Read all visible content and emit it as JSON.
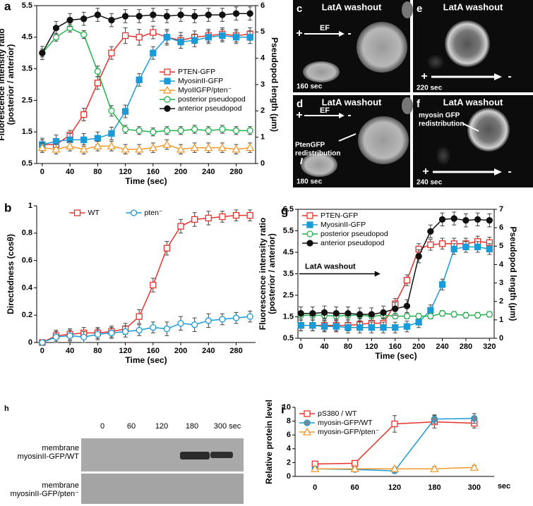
{
  "chart_data": [
    {
      "type": "line",
      "panel_label": "a",
      "xlabel": "Time (sec)",
      "ylabel": [
        "Fluorescence intensity ratio",
        "(posterior / anterior)"
      ],
      "y2label": "Pseudopod length (μm)",
      "x": [
        0,
        20,
        40,
        60,
        80,
        100,
        120,
        140,
        160,
        180,
        200,
        220,
        240,
        260,
        280,
        300
      ],
      "xlim": [
        -8,
        308
      ],
      "xticks": [
        0,
        40,
        80,
        120,
        160,
        200,
        240,
        280
      ],
      "ylim": [
        0.5,
        5.5
      ],
      "yticks": [
        0.5,
        1.5,
        2.5,
        3.5,
        4.5,
        5.5
      ],
      "y2lim": [
        0,
        6
      ],
      "y2ticks": [
        0,
        1,
        2,
        3,
        4,
        5,
        6
      ],
      "legend": "center right",
      "series": [
        {
          "name": "PTEN-GFP",
          "color": "#e8322b",
          "marker": "square",
          "filled": false,
          "values": [
            1.1,
            1.1,
            1.4,
            2.05,
            3.05,
            4.0,
            4.55,
            4.5,
            4.65,
            4.5,
            4.4,
            4.5,
            4.55,
            4.6,
            4.55,
            4.6
          ],
          "errors": [
            0.15,
            0.15,
            0.15,
            0.2,
            0.2,
            0.2,
            0.25,
            0.25,
            0.2,
            0.25,
            0.25,
            0.2,
            0.2,
            0.2,
            0.2,
            0.2
          ]
        },
        {
          "name": "MyosinII-GFP",
          "color": "#1a9ad6",
          "marker": "square",
          "filled": true,
          "values": [
            1.1,
            1.2,
            1.25,
            1.25,
            1.3,
            1.45,
            2.15,
            3.15,
            4.0,
            4.5,
            4.35,
            4.4,
            4.5,
            4.55,
            4.5,
            4.5
          ],
          "errors": [
            0.2,
            0.2,
            0.2,
            0.2,
            0.2,
            0.2,
            0.2,
            0.2,
            0.2,
            0.2,
            0.2,
            0.2,
            0.2,
            0.2,
            0.2,
            0.2
          ]
        },
        {
          "name": "MyoIIGFP/pten⁻",
          "color": "#f39a2b",
          "marker": "triangle",
          "filled": false,
          "values": [
            1.0,
            0.95,
            1.05,
            0.95,
            1.05,
            1.05,
            0.95,
            0.95,
            1.0,
            1.1,
            0.95,
            1.0,
            1.0,
            1.0,
            0.95,
            1.0
          ],
          "errors": [
            0.15,
            0.15,
            0.15,
            0.15,
            0.15,
            0.15,
            0.15,
            0.15,
            0.15,
            0.15,
            0.15,
            0.15,
            0.15,
            0.15,
            0.15,
            0.15
          ]
        },
        {
          "name": "posterior pseudopod",
          "color": "#22b24c",
          "marker": "circle",
          "filled": false,
          "axis": "y2",
          "values": [
            4.2,
            4.8,
            5.15,
            4.9,
            3.5,
            2.0,
            1.3,
            1.25,
            1.2,
            1.25,
            1.25,
            1.3,
            1.25,
            1.3,
            1.25,
            1.25
          ],
          "errors": [
            0.15,
            0.15,
            0.15,
            0.15,
            0.2,
            0.2,
            0.15,
            0.15,
            0.15,
            0.15,
            0.15,
            0.15,
            0.15,
            0.15,
            0.15,
            0.15
          ]
        },
        {
          "name": "anterior pseudopod",
          "color": "#111111",
          "marker": "circle",
          "filled": true,
          "axis": "y2",
          "values": [
            4.2,
            5.15,
            5.45,
            5.5,
            5.65,
            5.45,
            5.6,
            5.6,
            5.65,
            5.6,
            5.65,
            5.6,
            5.65,
            5.65,
            5.7,
            5.7
          ],
          "errors": [
            0.25,
            0.25,
            0.25,
            0.25,
            0.25,
            0.25,
            0.25,
            0.25,
            0.25,
            0.25,
            0.25,
            0.25,
            0.25,
            0.25,
            0.25,
            0.25
          ]
        }
      ]
    },
    {
      "type": "line",
      "panel_label": "b",
      "xlabel": "Time (sec)",
      "ylabel": [
        "Directedness (cosθ)"
      ],
      "x": [
        0,
        20,
        40,
        60,
        80,
        100,
        120,
        140,
        160,
        180,
        200,
        220,
        240,
        260,
        280,
        300
      ],
      "xlim": [
        -8,
        308
      ],
      "xticks": [
        0,
        40,
        80,
        120,
        160,
        200,
        240,
        280
      ],
      "ylim": [
        0,
        1
      ],
      "yticks": [
        0,
        0.2,
        0.4,
        0.6,
        0.8,
        1
      ],
      "legend": "upper center",
      "series": [
        {
          "name": "WT",
          "color": "#e8322b",
          "marker": "square",
          "filled": false,
          "values": [
            0,
            0.05,
            0.06,
            0.07,
            0.07,
            0.08,
            0.1,
            0.19,
            0.42,
            0.69,
            0.85,
            0.9,
            0.91,
            0.92,
            0.93,
            0.93
          ],
          "errors": [
            0.01,
            0.04,
            0.04,
            0.04,
            0.04,
            0.04,
            0.04,
            0.05,
            0.05,
            0.05,
            0.05,
            0.05,
            0.05,
            0.04,
            0.04,
            0.04
          ]
        },
        {
          "name": "pten⁻",
          "color": "#1a9ad6",
          "marker": "circle",
          "filled": false,
          "values": [
            0,
            0.04,
            0.05,
            0.04,
            0.06,
            0.07,
            0.08,
            0.09,
            0.11,
            0.1,
            0.14,
            0.13,
            0.16,
            0.17,
            0.18,
            0.19
          ],
          "errors": [
            0.01,
            0.04,
            0.04,
            0.04,
            0.04,
            0.04,
            0.04,
            0.04,
            0.04,
            0.05,
            0.05,
            0.05,
            0.05,
            0.04,
            0.04,
            0.04
          ]
        }
      ]
    },
    {
      "type": "line",
      "panel_label": "g",
      "xlabel": "Time (sec)",
      "ylabel": [
        "Fluorescence intensity ratio",
        "(posterior / anterior)"
      ],
      "y2label": "Pseudopod length (μm)",
      "x": [
        0,
        20,
        40,
        60,
        80,
        100,
        120,
        140,
        160,
        180,
        200,
        220,
        240,
        260,
        280,
        300,
        320
      ],
      "xlim": [
        -5,
        328
      ],
      "xticks": [
        0,
        40,
        80,
        120,
        160,
        200,
        240,
        280,
        320
      ],
      "ylim": [
        0.5,
        6.5
      ],
      "yticks": [
        0.5,
        1.5,
        2.5,
        3.5,
        4.5,
        5.5,
        6.5
      ],
      "y2lim": [
        0,
        7
      ],
      "y2ticks": [
        0,
        1,
        2,
        3,
        4,
        5,
        6,
        7
      ],
      "legend": "upper left",
      "annotation": "LatA washout",
      "series": [
        {
          "name": "PTEN-GFP",
          "color": "#e8322b",
          "marker": "square",
          "filled": false,
          "values": [
            1.1,
            1.1,
            1.1,
            1.1,
            1.1,
            1.15,
            1.2,
            1.2,
            2.1,
            3.2,
            4.65,
            4.85,
            4.9,
            4.9,
            4.9,
            5.0,
            4.95
          ],
          "errors": [
            0.25,
            0.25,
            0.25,
            0.25,
            0.25,
            0.25,
            0.25,
            0.25,
            0.25,
            0.25,
            0.25,
            0.25,
            0.25,
            0.25,
            0.25,
            0.25,
            0.25
          ]
        },
        {
          "name": "MyosinII-GFP",
          "color": "#1a9ad6",
          "marker": "square",
          "filled": true,
          "values": [
            1.1,
            1.1,
            1.05,
            1.05,
            1.0,
            1.0,
            1.0,
            1.0,
            1.0,
            1.05,
            1.25,
            1.8,
            3.0,
            4.65,
            4.75,
            4.75,
            4.65
          ],
          "errors": [
            0.25,
            0.25,
            0.25,
            0.25,
            0.25,
            0.25,
            0.25,
            0.25,
            0.25,
            0.25,
            0.25,
            0.25,
            0.25,
            0.25,
            0.25,
            0.25,
            0.25
          ]
        },
        {
          "name": "posterior pseudopod",
          "color": "#22b24c",
          "marker": "circle",
          "filled": false,
          "axis": "y2",
          "values": [
            1.25,
            1.25,
            1.25,
            1.2,
            1.25,
            1.25,
            1.2,
            1.25,
            1.2,
            1.2,
            1.2,
            1.2,
            1.35,
            1.3,
            1.25,
            1.25,
            1.3
          ],
          "errors": [
            0.15,
            0.15,
            0.15,
            0.15,
            0.15,
            0.15,
            0.15,
            0.15,
            0.15,
            0.15,
            0.15,
            0.15,
            0.15,
            0.15,
            0.15,
            0.15,
            0.15
          ]
        },
        {
          "name": "anterior pseudopod",
          "color": "#111111",
          "marker": "circle",
          "filled": true,
          "axis": "y2",
          "values": [
            1.35,
            1.35,
            1.4,
            1.35,
            1.35,
            1.3,
            1.3,
            1.4,
            1.6,
            1.75,
            4.45,
            5.8,
            6.45,
            6.5,
            6.4,
            6.45,
            6.4
          ],
          "errors": [
            0.35,
            0.35,
            0.35,
            0.35,
            0.35,
            0.35,
            0.35,
            0.35,
            0.35,
            0.35,
            0.35,
            0.35,
            0.35,
            0.35,
            0.35,
            0.35,
            0.35
          ]
        }
      ]
    },
    {
      "type": "line",
      "panel_label": "i",
      "ylabel": [
        "Relative protein level"
      ],
      "x_unit": "sec",
      "categories": [
        "0",
        "60",
        "120",
        "180",
        "300"
      ],
      "ylim": [
        0,
        10
      ],
      "yticks": [
        0,
        2,
        4,
        6,
        8,
        10
      ],
      "legend": "upper left",
      "series": [
        {
          "name": "pS380 / WT",
          "color": "#e8322b",
          "marker": "square",
          "filled": false,
          "values": [
            1.8,
            1.9,
            7.6,
            7.9,
            7.7
          ],
          "errors": [
            0.3,
            0.3,
            1.2,
            0.9,
            0.7
          ]
        },
        {
          "name": "myosin-GFP/WT",
          "color": "#1a9ad6",
          "marker": "circle",
          "filled": true,
          "fill_color": "#7d8790",
          "values": [
            1.1,
            1.0,
            0.8,
            8.3,
            8.4
          ],
          "errors": [
            0.3,
            0.3,
            0.3,
            0.6,
            0.7
          ]
        },
        {
          "name": "myosin-GFP/pten⁻",
          "color": "#f39a2b",
          "marker": "triangle",
          "filled": false,
          "values": [
            1.1,
            1.1,
            1.1,
            1.1,
            1.3
          ],
          "errors": [
            0.2,
            0.2,
            0.2,
            0.3,
            0.3
          ]
        }
      ]
    }
  ],
  "images": [
    {
      "label": "c",
      "title": "LatA washout",
      "field": "EF",
      "plus": "+",
      "minus": "-",
      "time": "160 sec"
    },
    {
      "label": "e",
      "title": "LatA washout",
      "plus": "+",
      "minus": "-",
      "time": "220 sec"
    },
    {
      "label": "d",
      "title": "LatA washout",
      "field": "EF",
      "plus": "+",
      "minus": "-",
      "note": [
        "PtenGFP",
        "redistribution"
      ],
      "time": "180 sec"
    },
    {
      "label": "f",
      "title": "LatA washout",
      "plus": "+",
      "minus": "-",
      "note": [
        "myosin GFP",
        "redistribution"
      ],
      "time": "240 sec"
    }
  ],
  "blot": {
    "label": "h",
    "lanes": [
      "0",
      "60",
      "120",
      "180",
      "300 sec"
    ],
    "rows": [
      [
        "membrane",
        "myosinII-GFP/WT"
      ],
      [
        "membrane",
        "myosinII-GFP/pten⁻"
      ]
    ]
  }
}
